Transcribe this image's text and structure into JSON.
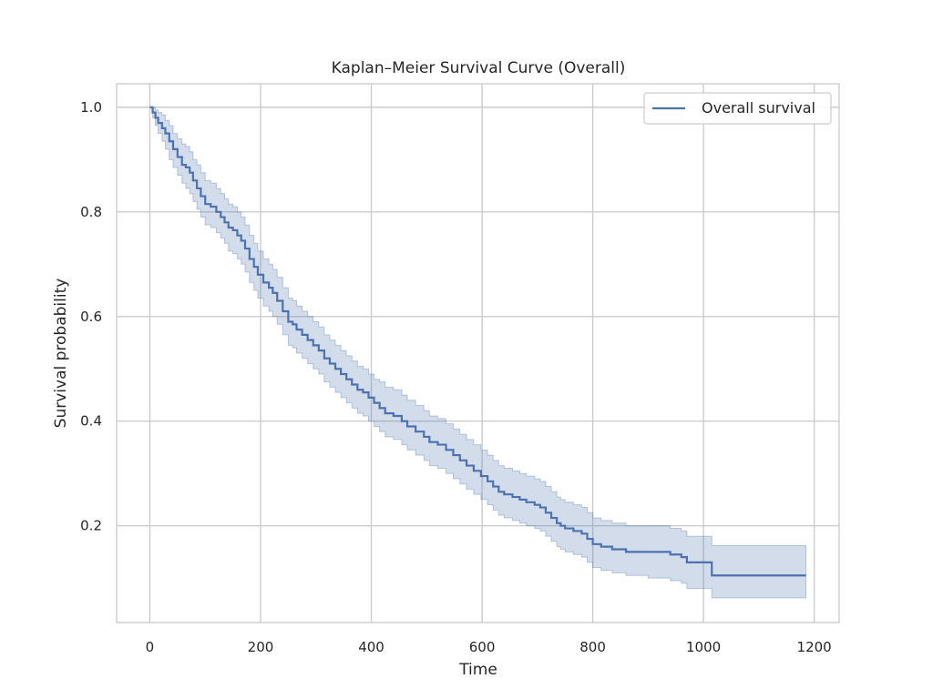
{
  "chart_data": {
    "type": "line",
    "title": "Kaplan–Meier Survival Curve (Overall)",
    "xlabel": "Time",
    "ylabel": "Survival probability",
    "xlim": [
      -60,
      1245
    ],
    "ylim": [
      0.015,
      1.045
    ],
    "xticks": [
      0,
      200,
      400,
      600,
      800,
      1000,
      1200
    ],
    "yticks": [
      0.2,
      0.4,
      0.6,
      0.8,
      1.0
    ],
    "xtick_labels": [
      "0",
      "200",
      "400",
      "600",
      "800",
      "1000",
      "1200"
    ],
    "ytick_labels": [
      "0.2",
      "0.4",
      "0.6",
      "0.8",
      "1.0"
    ],
    "grid": true,
    "legend": {
      "position": "top-right",
      "entries": [
        "Overall survival"
      ]
    },
    "colors": {
      "line": "#4c72b0",
      "band": "#4c72b0",
      "grid": "#cccccc"
    },
    "series": [
      {
        "name": "Overall survival",
        "step": "post",
        "x": [
          0,
          5,
          10,
          15,
          22,
          28,
          35,
          42,
          50,
          58,
          65,
          72,
          78,
          85,
          92,
          100,
          110,
          120,
          128,
          135,
          142,
          150,
          158,
          165,
          172,
          180,
          188,
          195,
          205,
          215,
          222,
          230,
          240,
          250,
          258,
          265,
          275,
          285,
          295,
          305,
          315,
          325,
          335,
          345,
          355,
          365,
          375,
          385,
          395,
          405,
          415,
          425,
          440,
          455,
          465,
          480,
          495,
          505,
          520,
          535,
          548,
          560,
          572,
          585,
          598,
          610,
          620,
          630,
          640,
          655,
          668,
          680,
          695,
          705,
          715,
          725,
          735,
          742,
          750,
          765,
          780,
          790,
          800,
          815,
          835,
          860,
          880,
          900,
          920,
          940,
          960,
          970,
          1000,
          1015,
          1185
        ],
        "y": [
          1.0,
          0.99,
          0.98,
          0.97,
          0.96,
          0.95,
          0.935,
          0.92,
          0.905,
          0.89,
          0.885,
          0.875,
          0.86,
          0.845,
          0.83,
          0.815,
          0.81,
          0.8,
          0.79,
          0.78,
          0.77,
          0.765,
          0.755,
          0.745,
          0.73,
          0.71,
          0.695,
          0.68,
          0.665,
          0.655,
          0.645,
          0.63,
          0.61,
          0.59,
          0.585,
          0.575,
          0.565,
          0.555,
          0.545,
          0.535,
          0.52,
          0.51,
          0.5,
          0.49,
          0.48,
          0.47,
          0.46,
          0.455,
          0.445,
          0.435,
          0.425,
          0.415,
          0.41,
          0.4,
          0.39,
          0.38,
          0.37,
          0.36,
          0.355,
          0.345,
          0.335,
          0.325,
          0.315,
          0.305,
          0.295,
          0.285,
          0.275,
          0.265,
          0.26,
          0.255,
          0.25,
          0.245,
          0.24,
          0.235,
          0.225,
          0.215,
          0.205,
          0.2,
          0.195,
          0.19,
          0.185,
          0.175,
          0.165,
          0.16,
          0.155,
          0.15,
          0.15,
          0.15,
          0.15,
          0.145,
          0.14,
          0.13,
          0.13,
          0.105,
          0.105
        ],
        "upper": [
          1.0,
          1.0,
          0.995,
          0.99,
          0.985,
          0.975,
          0.965,
          0.95,
          0.94,
          0.93,
          0.925,
          0.915,
          0.9,
          0.89,
          0.875,
          0.86,
          0.855,
          0.845,
          0.835,
          0.825,
          0.815,
          0.81,
          0.8,
          0.79,
          0.775,
          0.755,
          0.74,
          0.725,
          0.71,
          0.7,
          0.69,
          0.675,
          0.655,
          0.635,
          0.63,
          0.62,
          0.61,
          0.6,
          0.59,
          0.58,
          0.565,
          0.555,
          0.545,
          0.535,
          0.525,
          0.515,
          0.505,
          0.5,
          0.49,
          0.48,
          0.475,
          0.465,
          0.46,
          0.45,
          0.44,
          0.43,
          0.42,
          0.41,
          0.405,
          0.395,
          0.385,
          0.375,
          0.365,
          0.355,
          0.345,
          0.335,
          0.325,
          0.315,
          0.31,
          0.305,
          0.3,
          0.295,
          0.29,
          0.285,
          0.275,
          0.265,
          0.255,
          0.25,
          0.245,
          0.24,
          0.235,
          0.225,
          0.215,
          0.21,
          0.205,
          0.2,
          0.2,
          0.2,
          0.2,
          0.195,
          0.19,
          0.18,
          0.18,
          0.162,
          0.162
        ],
        "lower": [
          1.0,
          0.98,
          0.965,
          0.95,
          0.935,
          0.92,
          0.9,
          0.885,
          0.87,
          0.855,
          0.845,
          0.835,
          0.82,
          0.805,
          0.79,
          0.775,
          0.77,
          0.76,
          0.75,
          0.74,
          0.725,
          0.72,
          0.71,
          0.7,
          0.685,
          0.665,
          0.65,
          0.635,
          0.62,
          0.61,
          0.6,
          0.585,
          0.565,
          0.545,
          0.54,
          0.53,
          0.52,
          0.51,
          0.5,
          0.49,
          0.475,
          0.465,
          0.455,
          0.445,
          0.435,
          0.425,
          0.415,
          0.41,
          0.4,
          0.39,
          0.38,
          0.37,
          0.365,
          0.355,
          0.345,
          0.335,
          0.325,
          0.315,
          0.31,
          0.3,
          0.29,
          0.28,
          0.27,
          0.26,
          0.25,
          0.24,
          0.23,
          0.22,
          0.215,
          0.21,
          0.205,
          0.2,
          0.195,
          0.19,
          0.18,
          0.17,
          0.16,
          0.155,
          0.15,
          0.145,
          0.14,
          0.13,
          0.12,
          0.115,
          0.11,
          0.105,
          0.105,
          0.1,
          0.1,
          0.095,
          0.09,
          0.08,
          0.08,
          0.062,
          0.062
        ]
      }
    ]
  }
}
